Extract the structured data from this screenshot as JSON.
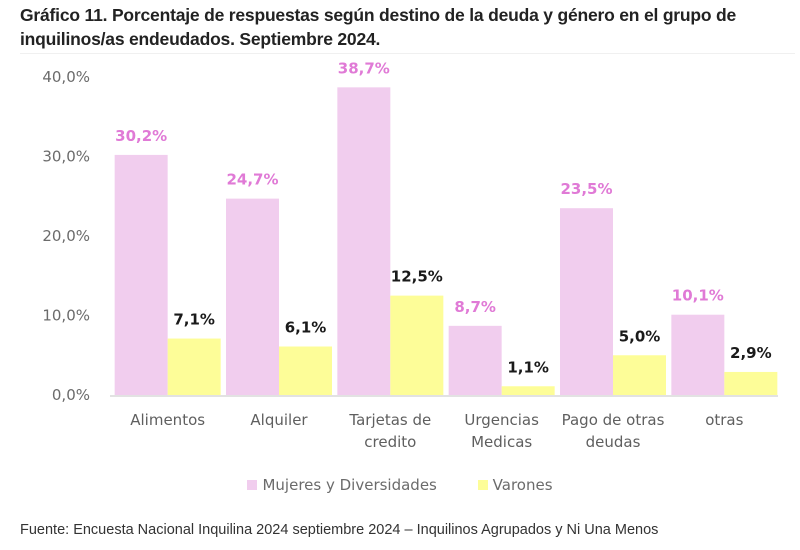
{
  "title": "Gráfico 11. Porcentaje de respuestas según destino de la deuda y género en el grupo de inquilinos/as endeudados. Septiembre 2024.",
  "source": "Fuente: Encuesta Nacional Inquilina 2024 septiembre 2024 – Inquilinos Agrupados y Ni Una Menos",
  "colors": {
    "mujeres": "#f1cdee",
    "varones": "#fdfd98",
    "mujeres_label": "#e07ad6",
    "varones_label": "#1a1a1a"
  },
  "chart_data": {
    "type": "bar",
    "title": "Gráfico 11. Porcentaje de respuestas según destino de la deuda y género en el grupo de inquilinos/as endeudados. Septiembre 2024.",
    "xlabel": "",
    "ylabel": "",
    "categories": [
      [
        "Alimentos"
      ],
      [
        "Alquiler"
      ],
      [
        "Tarjetas de",
        "credito"
      ],
      [
        "Urgencias",
        "Medicas"
      ],
      [
        "Pago de otras",
        "deudas"
      ],
      [
        "otras"
      ]
    ],
    "series": [
      {
        "name": "Mujeres y Diversidades",
        "values": [
          30.2,
          24.7,
          38.7,
          8.7,
          23.5,
          10.1
        ],
        "labels": [
          "30,2%",
          "24,7%",
          "38,7%",
          "8,7%",
          "23,5%",
          "10,1%"
        ]
      },
      {
        "name": "Varones",
        "values": [
          7.1,
          6.1,
          12.5,
          1.1,
          5.0,
          2.9
        ],
        "labels": [
          "7,1%",
          "6,1%",
          "12,5%",
          "1,1%",
          "5,0%",
          "2,9%"
        ]
      }
    ],
    "ylim": [
      0,
      40
    ],
    "yticks": [
      0,
      10,
      20,
      30,
      40
    ],
    "ytick_labels": [
      "0,0%",
      "10,0%",
      "20,0%",
      "30,0%",
      "40,0%"
    ],
    "grid": false,
    "legend_position": "bottom"
  }
}
